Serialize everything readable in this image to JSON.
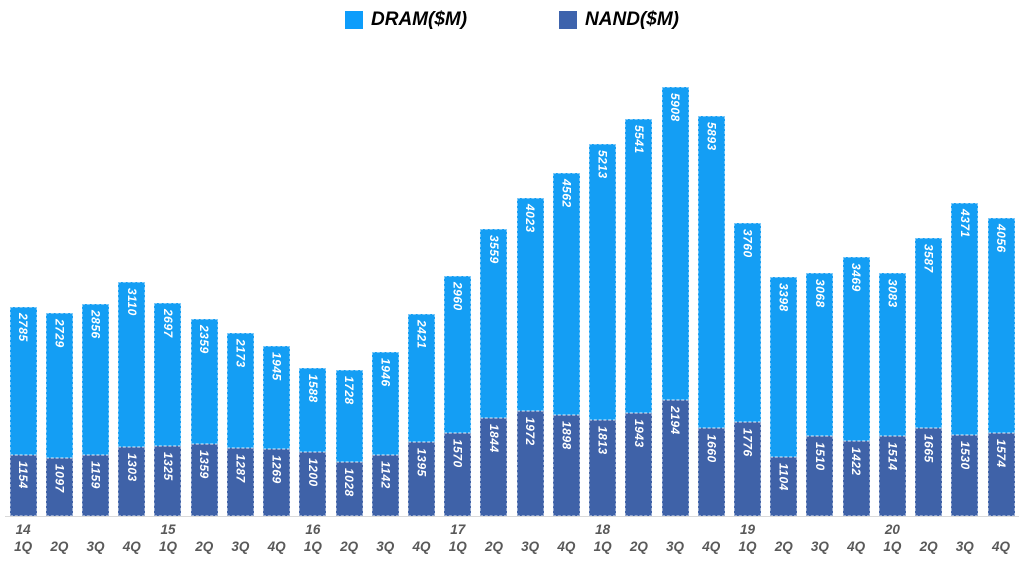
{
  "chart_data": {
    "type": "bar",
    "stacked": true,
    "title": "",
    "xlabel": "",
    "ylabel": "",
    "grid": false,
    "legend_position": "top-center",
    "background_color": "#ffffff",
    "baseline_color": "#d9d9d9",
    "axis_label_color": "#595959",
    "value_label_color": "#ffffff",
    "ylim": [
      0,
      8200
    ],
    "quarters": [
      "1Q",
      "2Q",
      "3Q",
      "4Q",
      "1Q",
      "2Q",
      "3Q",
      "4Q",
      "1Q",
      "2Q",
      "3Q",
      "4Q",
      "1Q",
      "2Q",
      "3Q",
      "4Q",
      "1Q",
      "2Q",
      "3Q",
      "4Q",
      "1Q",
      "2Q",
      "3Q",
      "4Q",
      "1Q",
      "2Q",
      "3Q",
      "4Q"
    ],
    "year_labels": [
      "14",
      "",
      "",
      "",
      "15",
      "",
      "",
      "",
      "16",
      "",
      "",
      "",
      "17",
      "",
      "",
      "",
      "18",
      "",
      "",
      "",
      "19",
      "",
      "",
      "",
      "20",
      "",
      "",
      ""
    ],
    "series": [
      {
        "name": "DRAM($M)",
        "color": "#149ef4",
        "values": [
          2785,
          2729,
          2856,
          3110,
          2697,
          2359,
          2173,
          1945,
          1588,
          1728,
          1946,
          2421,
          2960,
          3559,
          4023,
          4562,
          5213,
          5541,
          5908,
          5893,
          3760,
          3398,
          3068,
          3469,
          3083,
          3587,
          4371,
          4056
        ]
      },
      {
        "name": "NAND($M)",
        "color": "#3f62a8",
        "values": [
          1154,
          1097,
          1159,
          1303,
          1325,
          1359,
          1287,
          1269,
          1200,
          1028,
          1142,
          1395,
          1570,
          1844,
          1972,
          1898,
          1813,
          1943,
          2194,
          1660,
          1776,
          1104,
          1510,
          1422,
          1514,
          1665,
          1530,
          1574
        ]
      }
    ],
    "legend": [
      {
        "label": "DRAM($M)",
        "color": "#0d9dfb"
      },
      {
        "label": "NAND($M)",
        "color": "#3e63ac"
      }
    ]
  }
}
